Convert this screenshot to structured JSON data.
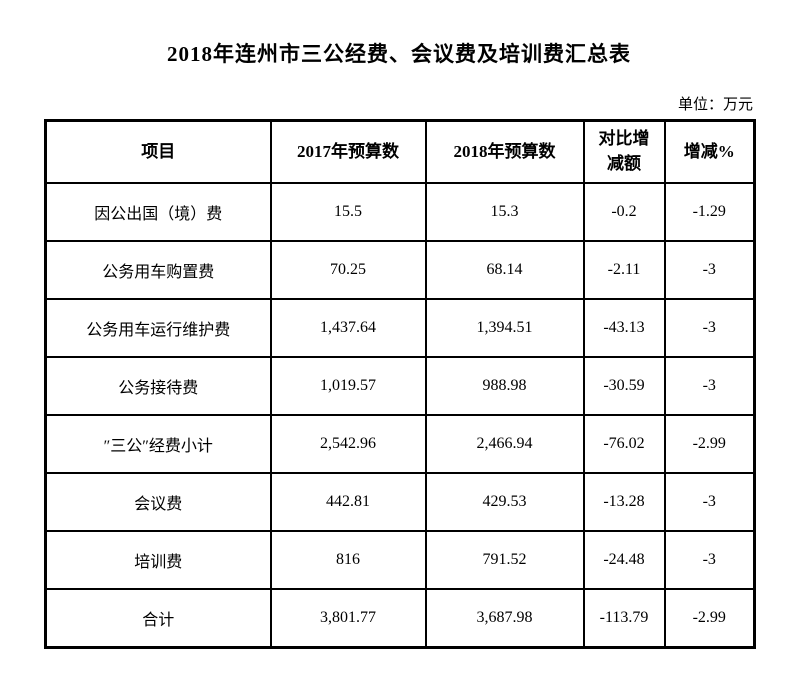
{
  "document": {
    "title": "2018年连州市三公经费、会议费及培训费汇总表",
    "unit_note": "单位：万元"
  },
  "colors": {
    "background": "#ffffff",
    "text": "#000000",
    "table_border": "#000000"
  },
  "table": {
    "columns": [
      "项目",
      "2017年预算数",
      "2018年预算数",
      "对比增减额",
      "增减%"
    ],
    "rows": [
      [
        "因公出国（境）费",
        "15.5",
        "15.3",
        "-0.2",
        "-1.29"
      ],
      [
        "公务用车购置费",
        "70.25",
        "68.14",
        "-2.11",
        "-3"
      ],
      [
        "公务用车运行维护费",
        "1,437.64",
        "1,394.51",
        "-43.13",
        "-3"
      ],
      [
        "公务接待费",
        "1,019.57",
        "988.98",
        "-30.59",
        "-3"
      ],
      [
        "″三公″经费小计",
        "2,542.96",
        "2,466.94",
        "-76.02",
        "-2.99"
      ],
      [
        "会议费",
        "442.81",
        "429.53",
        "-13.28",
        "-3"
      ],
      [
        "培训费",
        "816",
        "791.52",
        "-24.48",
        "-3"
      ],
      [
        "合计",
        "3,801.77",
        "3,687.98",
        "-113.79",
        "-2.99"
      ]
    ]
  }
}
